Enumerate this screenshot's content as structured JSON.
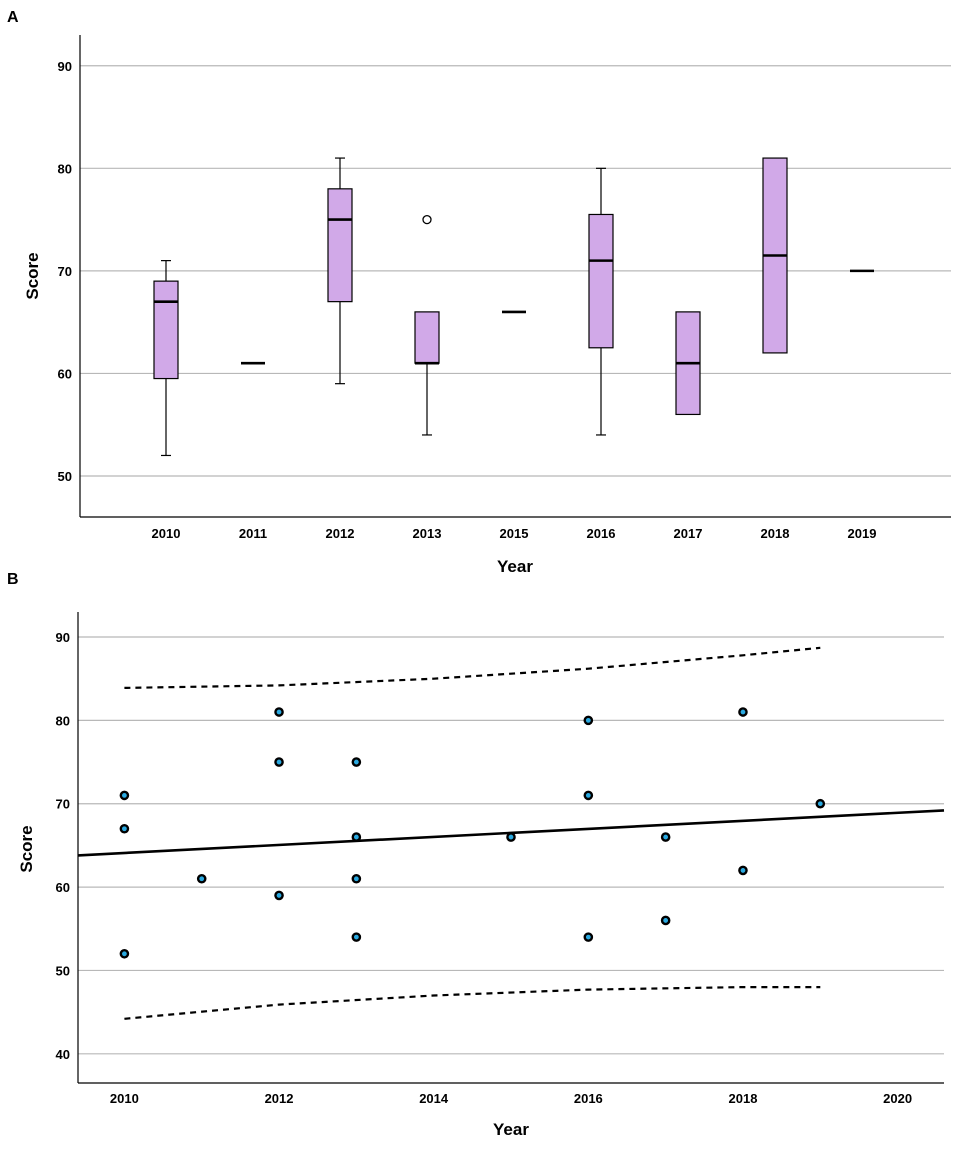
{
  "chart_data": [
    {
      "type": "box",
      "panel_label": "A",
      "xlabel": "Year",
      "ylabel": "Score",
      "ylim": [
        46,
        93
      ],
      "yticks": [
        50,
        60,
        70,
        80,
        90
      ],
      "grid": true,
      "categories": [
        "2010",
        "2011",
        "2012",
        "2013",
        "2015",
        "2016",
        "2017",
        "2018",
        "2019"
      ],
      "boxes": [
        {
          "min": 52,
          "q1": 59.5,
          "median": 67,
          "q3": 69,
          "max": 71,
          "outliers": []
        },
        {
          "min": 61,
          "q1": 61,
          "median": 61,
          "q3": 61,
          "max": 61,
          "outliers": []
        },
        {
          "min": 59,
          "q1": 67,
          "median": 75,
          "q3": 78,
          "max": 81,
          "outliers": []
        },
        {
          "min": 54,
          "q1": 61,
          "median": 61,
          "q3": 66,
          "max": 66,
          "outliers": [
            75
          ]
        },
        {
          "min": 66,
          "q1": 66,
          "median": 66,
          "q3": 66,
          "max": 66,
          "outliers": []
        },
        {
          "min": 54,
          "q1": 62.5,
          "median": 71,
          "q3": 75.5,
          "max": 80,
          "outliers": []
        },
        {
          "min": 56,
          "q1": 56,
          "median": 61,
          "q3": 66,
          "max": 66,
          "outliers": []
        },
        {
          "min": 62,
          "q1": 62,
          "median": 71.5,
          "q3": 81,
          "max": 81,
          "outliers": []
        },
        {
          "min": 70,
          "q1": 70,
          "median": 70,
          "q3": 70,
          "max": 70,
          "outliers": []
        }
      ],
      "colors": {
        "box": "#d1a9e8"
      }
    },
    {
      "type": "scatter",
      "panel_label": "B",
      "xlabel": "Year",
      "ylabel": "Score",
      "xlim": [
        2009.4,
        2020.6
      ],
      "ylim": [
        36.5,
        93
      ],
      "xticks": [
        2010,
        2012,
        2014,
        2016,
        2018,
        2020
      ],
      "yticks": [
        40,
        50,
        60,
        70,
        80,
        90
      ],
      "grid": true,
      "points": [
        {
          "x": 2010,
          "y": 71
        },
        {
          "x": 2010,
          "y": 67
        },
        {
          "x": 2010,
          "y": 52
        },
        {
          "x": 2011,
          "y": 61
        },
        {
          "x": 2012,
          "y": 81
        },
        {
          "x": 2012,
          "y": 75
        },
        {
          "x": 2012,
          "y": 59
        },
        {
          "x": 2013,
          "y": 75
        },
        {
          "x": 2013,
          "y": 66
        },
        {
          "x": 2013,
          "y": 61
        },
        {
          "x": 2013,
          "y": 54
        },
        {
          "x": 2015,
          "y": 66
        },
        {
          "x": 2016,
          "y": 80
        },
        {
          "x": 2016,
          "y": 71
        },
        {
          "x": 2016,
          "y": 54
        },
        {
          "x": 2017,
          "y": 66
        },
        {
          "x": 2017,
          "y": 56
        },
        {
          "x": 2018,
          "y": 81
        },
        {
          "x": 2018,
          "y": 62
        },
        {
          "x": 2019,
          "y": 70
        }
      ],
      "fit_line": {
        "x": [
          2009.4,
          2020.6
        ],
        "y": [
          63.8,
          69.2
        ]
      },
      "ci_upper": {
        "x": [
          2010,
          2012,
          2014,
          2016,
          2018,
          2019
        ],
        "y": [
          83.9,
          84.2,
          85.0,
          86.2,
          87.8,
          88.7
        ]
      },
      "ci_lower": {
        "x": [
          2010,
          2012,
          2014,
          2016,
          2018,
          2019
        ],
        "y": [
          44.2,
          45.9,
          47.0,
          47.7,
          48.0,
          48.0
        ]
      },
      "colors": {
        "point": "#2aa9e0"
      }
    }
  ]
}
